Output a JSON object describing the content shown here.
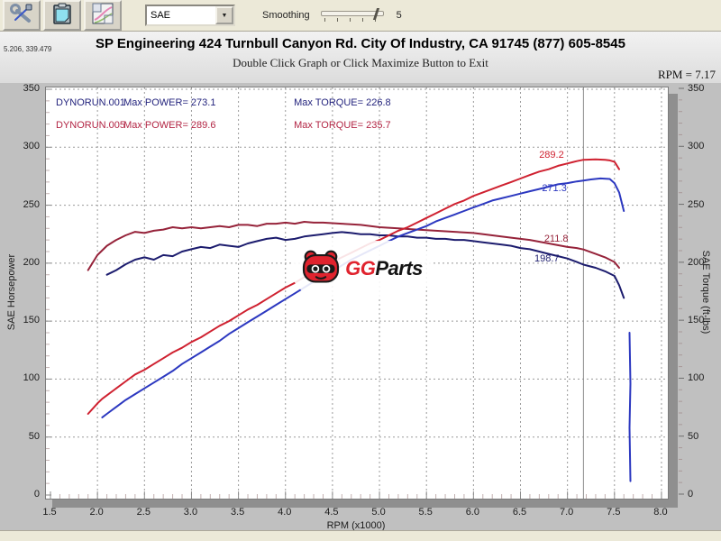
{
  "toolbar": {
    "buttons": [
      {
        "label": "tools"
      },
      {
        "label": "clipboard"
      },
      {
        "label": "graph-report"
      }
    ],
    "dropdown_value": "SAE",
    "smoothing_label": "Smoothing",
    "smoothing_value": "5"
  },
  "header": {
    "cursor_coords": "5.206, 339.479",
    "title": "SP Engineering 424 Turnbull Canyon Rd. City Of Industry, CA 91745 (877) 605-8545",
    "subtitle": "Double Click Graph or Click Maximize Button to Exit",
    "rpm_readout": "RPM = 7.17"
  },
  "legend": {
    "runs": [
      {
        "file": "DYNORUN.001",
        "power": "Max POWER= 273.1",
        "torque": "Max TORQUE= 226.8",
        "color": "#23237d"
      },
      {
        "file": "DYNORUN.005",
        "power": "Max POWER= 289.6",
        "torque": "Max TORQUE= 235.7",
        "color": "#b22443"
      }
    ]
  },
  "watermark": {
    "brand_red": "GG",
    "brand_black": "Parts"
  },
  "chart_data": {
    "type": "line",
    "title": "SP Engineering dyno run comparison",
    "xlabel": "RPM (x1000)",
    "ylabel_left": "SAE Horsepower",
    "ylabel_right": "SAE Torque (ft-lbs)",
    "xlim": [
      1.5,
      8.0
    ],
    "ylim": [
      0,
      350
    ],
    "x_ticks": [
      1.5,
      2.0,
      2.5,
      3.0,
      3.5,
      4.0,
      4.5,
      5.0,
      5.5,
      6.0,
      6.5,
      7.0,
      7.5,
      8.0
    ],
    "y_ticks": [
      0,
      50,
      100,
      150,
      200,
      250,
      300,
      350
    ],
    "grid": true,
    "legend_position": "top-left",
    "cursor_rpm": 7.17,
    "series": [
      {
        "name": "DYNORUN.001 SAE Torque",
        "unit": "ft-lbs",
        "color": "#1c1c6e",
        "max": 226.8,
        "points": [
          [
            2.1,
            190
          ],
          [
            2.2,
            194
          ],
          [
            2.3,
            199
          ],
          [
            2.4,
            203
          ],
          [
            2.5,
            205
          ],
          [
            2.6,
            203
          ],
          [
            2.7,
            207
          ],
          [
            2.8,
            206
          ],
          [
            2.9,
            210
          ],
          [
            3.0,
            212
          ],
          [
            3.1,
            214
          ],
          [
            3.2,
            213
          ],
          [
            3.3,
            216
          ],
          [
            3.4,
            215
          ],
          [
            3.5,
            214
          ],
          [
            3.6,
            217
          ],
          [
            3.7,
            219
          ],
          [
            3.8,
            221
          ],
          [
            3.9,
            222
          ],
          [
            4.0,
            220
          ],
          [
            4.1,
            221
          ],
          [
            4.2,
            223
          ],
          [
            4.3,
            224
          ],
          [
            4.4,
            225
          ],
          [
            4.5,
            226
          ],
          [
            4.6,
            226.8
          ],
          [
            4.7,
            226
          ],
          [
            4.8,
            225
          ],
          [
            4.9,
            225
          ],
          [
            5.0,
            224
          ],
          [
            5.1,
            224
          ],
          [
            5.2,
            223
          ],
          [
            5.3,
            223
          ],
          [
            5.4,
            222
          ],
          [
            5.5,
            222
          ],
          [
            5.6,
            221
          ],
          [
            5.7,
            221
          ],
          [
            5.8,
            220
          ],
          [
            5.9,
            220
          ],
          [
            6.0,
            219
          ],
          [
            6.1,
            218
          ],
          [
            6.2,
            217
          ],
          [
            6.3,
            216
          ],
          [
            6.4,
            215
          ],
          [
            6.5,
            213
          ],
          [
            6.6,
            212
          ],
          [
            6.7,
            210
          ],
          [
            6.8,
            208
          ],
          [
            6.9,
            206
          ],
          [
            7.0,
            204
          ],
          [
            7.1,
            201
          ],
          [
            7.17,
            198.7
          ],
          [
            7.3,
            196
          ],
          [
            7.4,
            193
          ],
          [
            7.5,
            189
          ],
          [
            7.55,
            181
          ],
          [
            7.6,
            170
          ]
        ]
      },
      {
        "name": "DYNORUN.005 SAE Torque",
        "unit": "ft-lbs",
        "color": "#96233a",
        "max": 235.7,
        "points": [
          [
            1.9,
            194
          ],
          [
            2.0,
            207
          ],
          [
            2.1,
            215
          ],
          [
            2.2,
            220
          ],
          [
            2.3,
            224
          ],
          [
            2.4,
            227
          ],
          [
            2.5,
            226
          ],
          [
            2.6,
            228
          ],
          [
            2.7,
            229
          ],
          [
            2.8,
            231
          ],
          [
            2.9,
            230
          ],
          [
            3.0,
            231
          ],
          [
            3.1,
            230
          ],
          [
            3.2,
            231
          ],
          [
            3.3,
            232
          ],
          [
            3.4,
            231
          ],
          [
            3.5,
            233
          ],
          [
            3.6,
            233
          ],
          [
            3.7,
            232
          ],
          [
            3.8,
            234
          ],
          [
            3.9,
            234
          ],
          [
            4.0,
            235
          ],
          [
            4.1,
            234
          ],
          [
            4.2,
            235.7
          ],
          [
            4.3,
            235
          ],
          [
            4.4,
            235
          ],
          [
            4.6,
            234
          ],
          [
            4.8,
            233
          ],
          [
            5.0,
            231
          ],
          [
            5.2,
            230
          ],
          [
            5.4,
            229
          ],
          [
            5.6,
            228
          ],
          [
            5.8,
            227
          ],
          [
            6.0,
            226
          ],
          [
            6.2,
            224
          ],
          [
            6.4,
            222
          ],
          [
            6.6,
            220
          ],
          [
            6.8,
            217
          ],
          [
            7.0,
            214
          ],
          [
            7.1,
            213
          ],
          [
            7.17,
            211.8
          ],
          [
            7.3,
            208
          ],
          [
            7.4,
            205
          ],
          [
            7.5,
            201
          ],
          [
            7.55,
            196
          ]
        ]
      },
      {
        "name": "DYNORUN.001 SAE Power",
        "unit": "hp",
        "color": "#2c38c0",
        "max": 273.1,
        "points": [
          [
            2.05,
            67
          ],
          [
            2.1,
            70
          ],
          [
            2.2,
            76
          ],
          [
            2.3,
            82
          ],
          [
            2.4,
            87
          ],
          [
            2.5,
            92
          ],
          [
            2.6,
            97
          ],
          [
            2.7,
            102
          ],
          [
            2.8,
            107
          ],
          [
            2.9,
            113
          ],
          [
            3.0,
            118
          ],
          [
            3.1,
            123
          ],
          [
            3.2,
            128
          ],
          [
            3.3,
            133
          ],
          [
            3.4,
            139
          ],
          [
            3.5,
            144
          ],
          [
            3.6,
            149
          ],
          [
            3.7,
            154
          ],
          [
            3.8,
            159
          ],
          [
            3.9,
            164
          ],
          [
            4.0,
            169
          ],
          [
            4.1,
            174
          ],
          [
            4.2,
            179
          ],
          [
            4.3,
            184
          ],
          [
            4.4,
            188
          ],
          [
            4.5,
            193
          ],
          [
            4.6,
            198
          ],
          [
            4.7,
            203
          ],
          [
            4.8,
            207
          ],
          [
            4.9,
            211
          ],
          [
            5.0,
            215
          ],
          [
            5.1,
            219
          ],
          [
            5.2,
            223
          ],
          [
            5.3,
            226
          ],
          [
            5.4,
            229
          ],
          [
            5.5,
            232
          ],
          [
            5.6,
            236
          ],
          [
            5.7,
            239
          ],
          [
            5.8,
            242
          ],
          [
            5.9,
            245
          ],
          [
            6.0,
            248
          ],
          [
            6.1,
            251
          ],
          [
            6.2,
            254
          ],
          [
            6.3,
            256
          ],
          [
            6.4,
            258
          ],
          [
            6.5,
            260
          ],
          [
            6.6,
            262
          ],
          [
            6.7,
            264
          ],
          [
            6.8,
            266
          ],
          [
            6.9,
            268
          ],
          [
            7.0,
            269
          ],
          [
            7.1,
            270.5
          ],
          [
            7.17,
            271.3
          ],
          [
            7.25,
            272.2
          ],
          [
            7.35,
            273.1
          ],
          [
            7.45,
            272.6
          ],
          [
            7.5,
            269
          ],
          [
            7.55,
            261
          ],
          [
            7.6,
            245
          ]
        ]
      },
      {
        "name": "DYNORUN.005 SAE Power",
        "unit": "hp",
        "color": "#cf2130",
        "max": 289.6,
        "points": [
          [
            1.9,
            70
          ],
          [
            2.0,
            79
          ],
          [
            2.05,
            83
          ],
          [
            2.1,
            86
          ],
          [
            2.2,
            92
          ],
          [
            2.3,
            98
          ],
          [
            2.4,
            104
          ],
          [
            2.5,
            108
          ],
          [
            2.6,
            113
          ],
          [
            2.7,
            118
          ],
          [
            2.8,
            123
          ],
          [
            2.9,
            127
          ],
          [
            3.0,
            132
          ],
          [
            3.1,
            136
          ],
          [
            3.2,
            141
          ],
          [
            3.3,
            146
          ],
          [
            3.4,
            150
          ],
          [
            3.5,
            155
          ],
          [
            3.6,
            160
          ],
          [
            3.7,
            164
          ],
          [
            3.8,
            169
          ],
          [
            3.9,
            174
          ],
          [
            4.0,
            179
          ],
          [
            4.1,
            183
          ],
          [
            4.2,
            188
          ],
          [
            4.3,
            192
          ],
          [
            4.4,
            197
          ],
          [
            4.5,
            201
          ],
          [
            4.6,
            205
          ],
          [
            4.7,
            209
          ],
          [
            4.8,
            213
          ],
          [
            4.9,
            217
          ],
          [
            5.0,
            220
          ],
          [
            5.1,
            224
          ],
          [
            5.2,
            228
          ],
          [
            5.3,
            231
          ],
          [
            5.4,
            235
          ],
          [
            5.5,
            239
          ],
          [
            5.6,
            243
          ],
          [
            5.7,
            247
          ],
          [
            5.8,
            251
          ],
          [
            5.9,
            254
          ],
          [
            6.0,
            258
          ],
          [
            6.1,
            261
          ],
          [
            6.2,
            264
          ],
          [
            6.3,
            267
          ],
          [
            6.4,
            270
          ],
          [
            6.5,
            273
          ],
          [
            6.6,
            276
          ],
          [
            6.7,
            279
          ],
          [
            6.8,
            281
          ],
          [
            6.9,
            284
          ],
          [
            7.0,
            286
          ],
          [
            7.1,
            288
          ],
          [
            7.17,
            289.2
          ],
          [
            7.3,
            289.6
          ],
          [
            7.4,
            289.2
          ],
          [
            7.45,
            288.6
          ],
          [
            7.5,
            287.5
          ],
          [
            7.52,
            285
          ],
          [
            7.55,
            281
          ]
        ]
      },
      {
        "name": "DYNORUN.001 data dropout",
        "unit": "hp",
        "color": "#2c38c0",
        "points": [
          [
            7.66,
            140
          ],
          [
            7.67,
            96
          ],
          [
            7.66,
            58
          ],
          [
            7.67,
            12
          ]
        ]
      }
    ],
    "annotations": [
      {
        "text": "289.2",
        "color": "#cf2130",
        "rpm": 6.84,
        "value": 292
      },
      {
        "text": "271.3",
        "color": "#2c38c0",
        "rpm": 6.87,
        "value": 263
      },
      {
        "text": "211.8",
        "color": "#96233a",
        "rpm": 6.89,
        "value": 219
      },
      {
        "text": "198.7",
        "color": "#1c1c6e",
        "rpm": 6.79,
        "value": 202
      }
    ]
  }
}
